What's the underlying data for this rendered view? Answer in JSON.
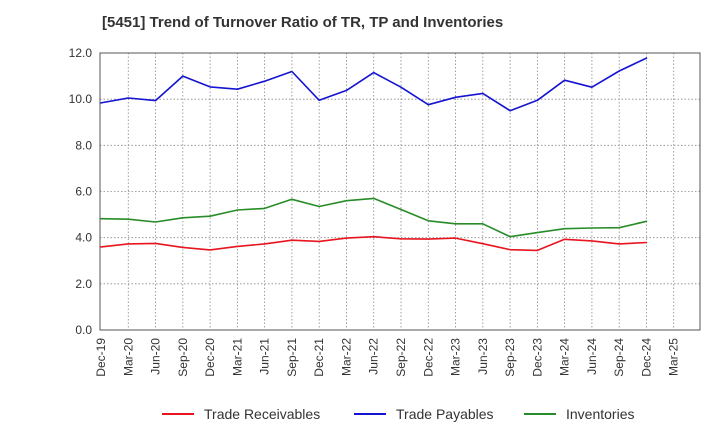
{
  "chart_data": {
    "type": "line",
    "title": "[5451]  Trend of Turnover Ratio of TR, TP and Inventories",
    "xlabel": "",
    "ylabel": "",
    "ylim": [
      0,
      12.0
    ],
    "yticks": [
      "0.0",
      "2.0",
      "4.0",
      "6.0",
      "8.0",
      "10.0",
      "12.0"
    ],
    "grid": true,
    "legend_position": "bottom",
    "categories": [
      "Dec-19",
      "Mar-20",
      "Jun-20",
      "Sep-20",
      "Dec-20",
      "Mar-21",
      "Jun-21",
      "Sep-21",
      "Dec-21",
      "Mar-22",
      "Jun-22",
      "Sep-22",
      "Dec-22",
      "Mar-23",
      "Jun-23",
      "Sep-23",
      "Dec-23",
      "Mar-24",
      "Jun-24",
      "Sep-24",
      "Dec-24",
      "Mar-25"
    ],
    "series": [
      {
        "name": "Trade Receivables",
        "color": "#e8141e",
        "values": [
          3.6,
          3.73,
          3.75,
          3.58,
          3.47,
          3.62,
          3.73,
          3.89,
          3.84,
          3.98,
          4.04,
          3.95,
          3.94,
          3.98,
          3.74,
          3.48,
          3.45,
          3.93,
          3.86,
          3.73,
          3.79,
          null
        ]
      },
      {
        "name": "Trade Payables",
        "color": "#1414d2",
        "values": [
          9.84,
          10.05,
          9.94,
          11.0,
          10.53,
          10.43,
          10.78,
          11.2,
          9.95,
          10.38,
          11.15,
          10.52,
          9.76,
          10.08,
          10.25,
          9.5,
          9.95,
          10.82,
          10.52,
          11.22,
          11.78,
          null
        ]
      },
      {
        "name": "Inventories",
        "color": "#288c28",
        "values": [
          4.82,
          4.8,
          4.68,
          4.86,
          4.93,
          5.2,
          5.27,
          5.66,
          5.35,
          5.6,
          5.7,
          5.22,
          4.73,
          4.6,
          4.6,
          4.04,
          4.22,
          4.39,
          4.42,
          4.43,
          4.71,
          null
        ]
      }
    ]
  }
}
